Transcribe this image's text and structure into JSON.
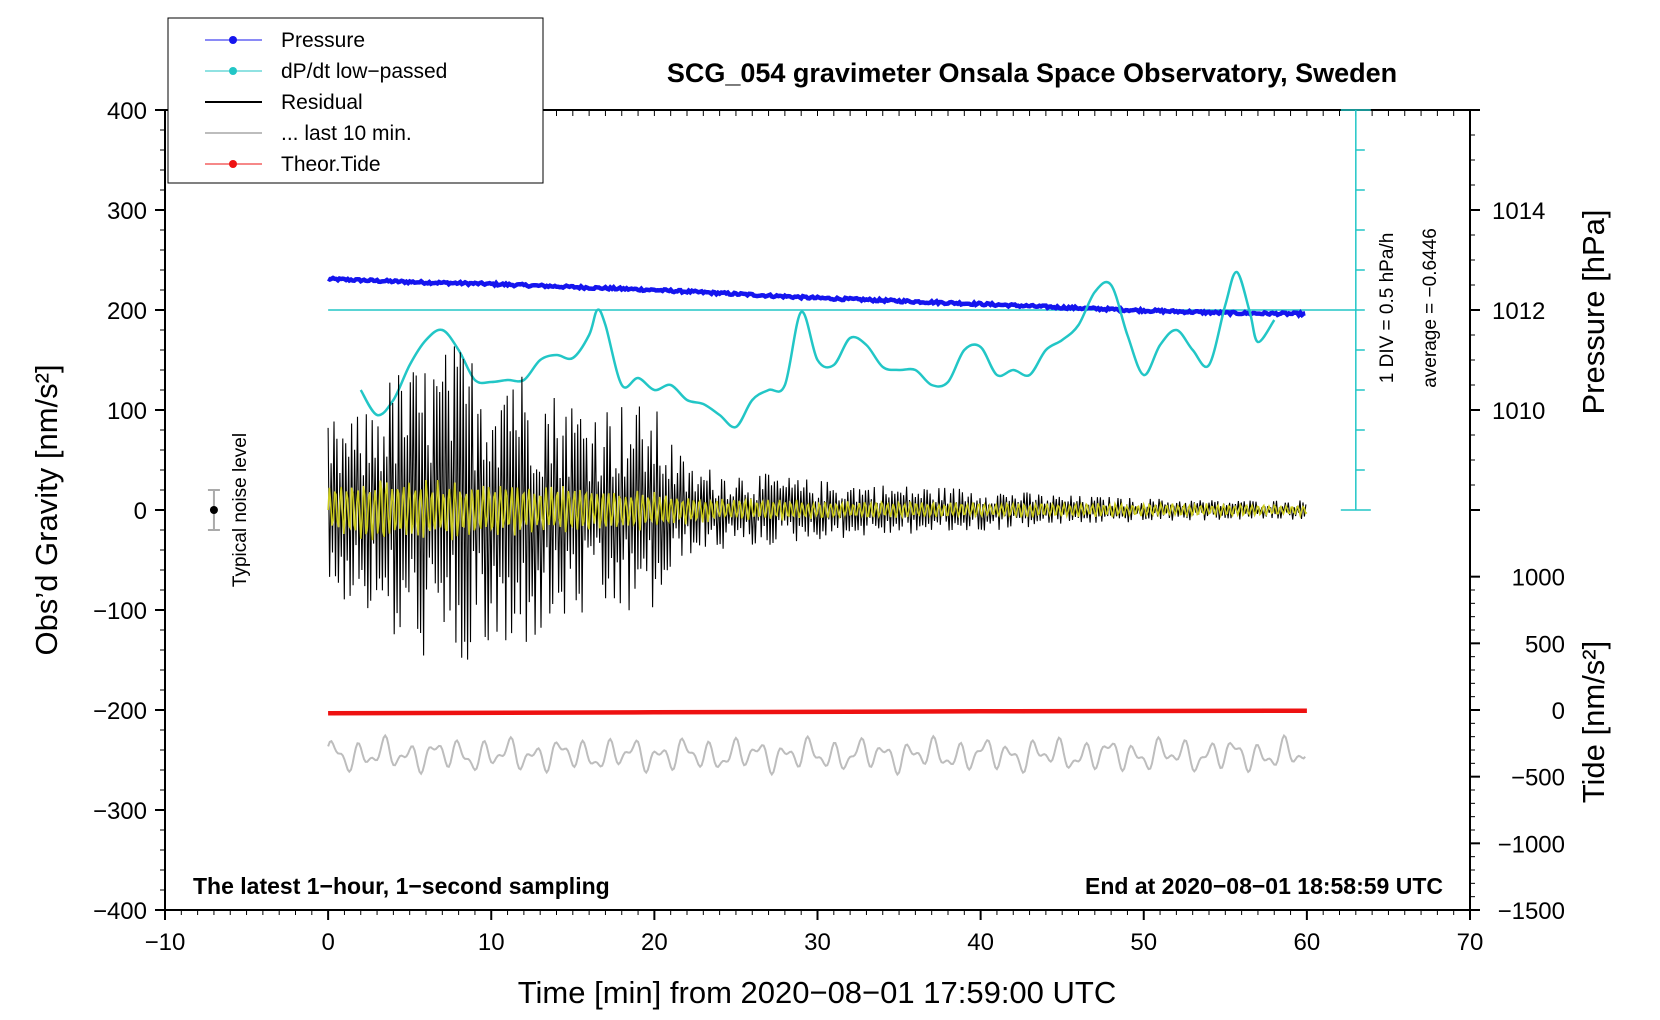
{
  "chart_data": {
    "type": "line",
    "title": "SCG_054 gravimeter Onsala Space Observatory, Sweden",
    "xlabel": "Time [min] from 2020−08−01 17:59:00 UTC",
    "ylabel_left": "Obs’d Gravity [nm/s²]",
    "ylabel_pressure": "Pressure [hPa]",
    "ylabel_tide": "Tide [nm/s²]",
    "xlim": [
      -10,
      70
    ],
    "ylim": [
      -400,
      400
    ],
    "x_ticks": [
      "−10",
      "0",
      "10",
      "20",
      "30",
      "40",
      "50",
      "60",
      "70"
    ],
    "y_ticks": [
      "400",
      "300",
      "200",
      "100",
      "0",
      "−100",
      "−200",
      "−300",
      "−400"
    ],
    "pressure_axis": {
      "ylim": [
        1008,
        1016
      ],
      "ticks": [
        "1014",
        "1012",
        "1010"
      ]
    },
    "tide_axis": {
      "ylim": [
        -1500,
        1500
      ],
      "ticks": [
        "1000",
        "500",
        "0",
        "−500",
        "−1000",
        "−1500"
      ]
    },
    "legend": {
      "position": "top-left",
      "entries": [
        {
          "label": "Pressure",
          "color": "#1515ee",
          "marker": "dot"
        },
        {
          "label": "dP/dt low−passed",
          "color": "#22c6c6",
          "marker": "dot"
        },
        {
          "label": "Residual",
          "color": "#000000",
          "marker": "line"
        },
        {
          "label": "... last 10 min.",
          "color": "#bdbdbd",
          "marker": "line"
        },
        {
          "label": "Theor.Tide",
          "color": "#ee1111",
          "marker": "dot"
        }
      ]
    },
    "annotations": {
      "left_note": "The latest 1−hour, 1−second sampling",
      "right_note": "End at 2020−08−01 18:58:59 UTC",
      "noise_label": "Typical noise level",
      "div_label": "1 DIV = 0.5 hPa/h",
      "average_label": "average = −0.6446"
    },
    "noise_bar": {
      "x": -7,
      "y": 0,
      "half_range": 20
    },
    "pressure_series": {
      "name": "Pressure",
      "color": "#1515ee",
      "x": [
        0,
        5,
        10,
        15,
        20,
        25,
        30,
        35,
        40,
        45,
        50,
        55,
        60
      ],
      "y": [
        1012.62,
        1012.56,
        1012.52,
        1012.46,
        1012.4,
        1012.32,
        1012.24,
        1012.18,
        1012.12,
        1012.05,
        1011.99,
        1011.94,
        1011.92
      ]
    },
    "dpdt_series": {
      "name": "dP/dt low−passed",
      "color": "#22c6c6",
      "reference_level": 200,
      "x": [
        2,
        3,
        4,
        5,
        6,
        7,
        8,
        9,
        10,
        11,
        12,
        13,
        14,
        15,
        16,
        16.5,
        17,
        18,
        19,
        20,
        21,
        22,
        23,
        24,
        25,
        26,
        27,
        28,
        29,
        30,
        31,
        32,
        33,
        34,
        35,
        36,
        37,
        38,
        39,
        40,
        41,
        42,
        43,
        44,
        45,
        46,
        47,
        48,
        49,
        50,
        51,
        52,
        53,
        54,
        55,
        55.7,
        56.5,
        57,
        58
      ],
      "y": [
        120,
        95,
        110,
        145,
        170,
        180,
        160,
        130,
        128,
        130,
        130,
        150,
        155,
        152,
        175,
        200,
        185,
        125,
        132,
        120,
        125,
        110,
        106,
        95,
        83,
        110,
        120,
        125,
        198,
        150,
        145,
        172,
        165,
        143,
        140,
        140,
        125,
        128,
        160,
        163,
        135,
        140,
        135,
        160,
        170,
        185,
        218,
        225,
        175,
        135,
        165,
        180,
        160,
        145,
        205,
        238,
        198,
        168,
        190
      ]
    },
    "residual_series": {
      "name": "Residual",
      "color": "#000000",
      "x": [
        0,
        2,
        4,
        6,
        8,
        10,
        11.2,
        12,
        14,
        16,
        18,
        20,
        22,
        25,
        30,
        35,
        40,
        45,
        50,
        55,
        60
      ],
      "envelope": [
        90,
        95,
        140,
        150,
        170,
        145,
        180,
        140,
        120,
        110,
        110,
        105,
        45,
        40,
        30,
        25,
        22,
        15,
        12,
        10,
        10
      ]
    },
    "residual_filtered_series": {
      "name": "Residual (filtered)",
      "color": "#cccc1f",
      "x": [
        0,
        4,
        8,
        12,
        16,
        20,
        24,
        30,
        40,
        50,
        60
      ],
      "envelope": [
        30,
        35,
        30,
        25,
        25,
        20,
        12,
        10,
        8,
        7,
        6
      ]
    },
    "last10_series": {
      "name": "... last 10 min.",
      "color": "#bdbdbd",
      "x": [
        0,
        60
      ],
      "offset": -245,
      "amplitude": 18
    },
    "tide_series": {
      "name": "Theor.Tide",
      "color": "#ee1111",
      "x": [
        0,
        20,
        40,
        60
      ],
      "y": [
        -25,
        -17,
        -10,
        -5
      ]
    }
  }
}
